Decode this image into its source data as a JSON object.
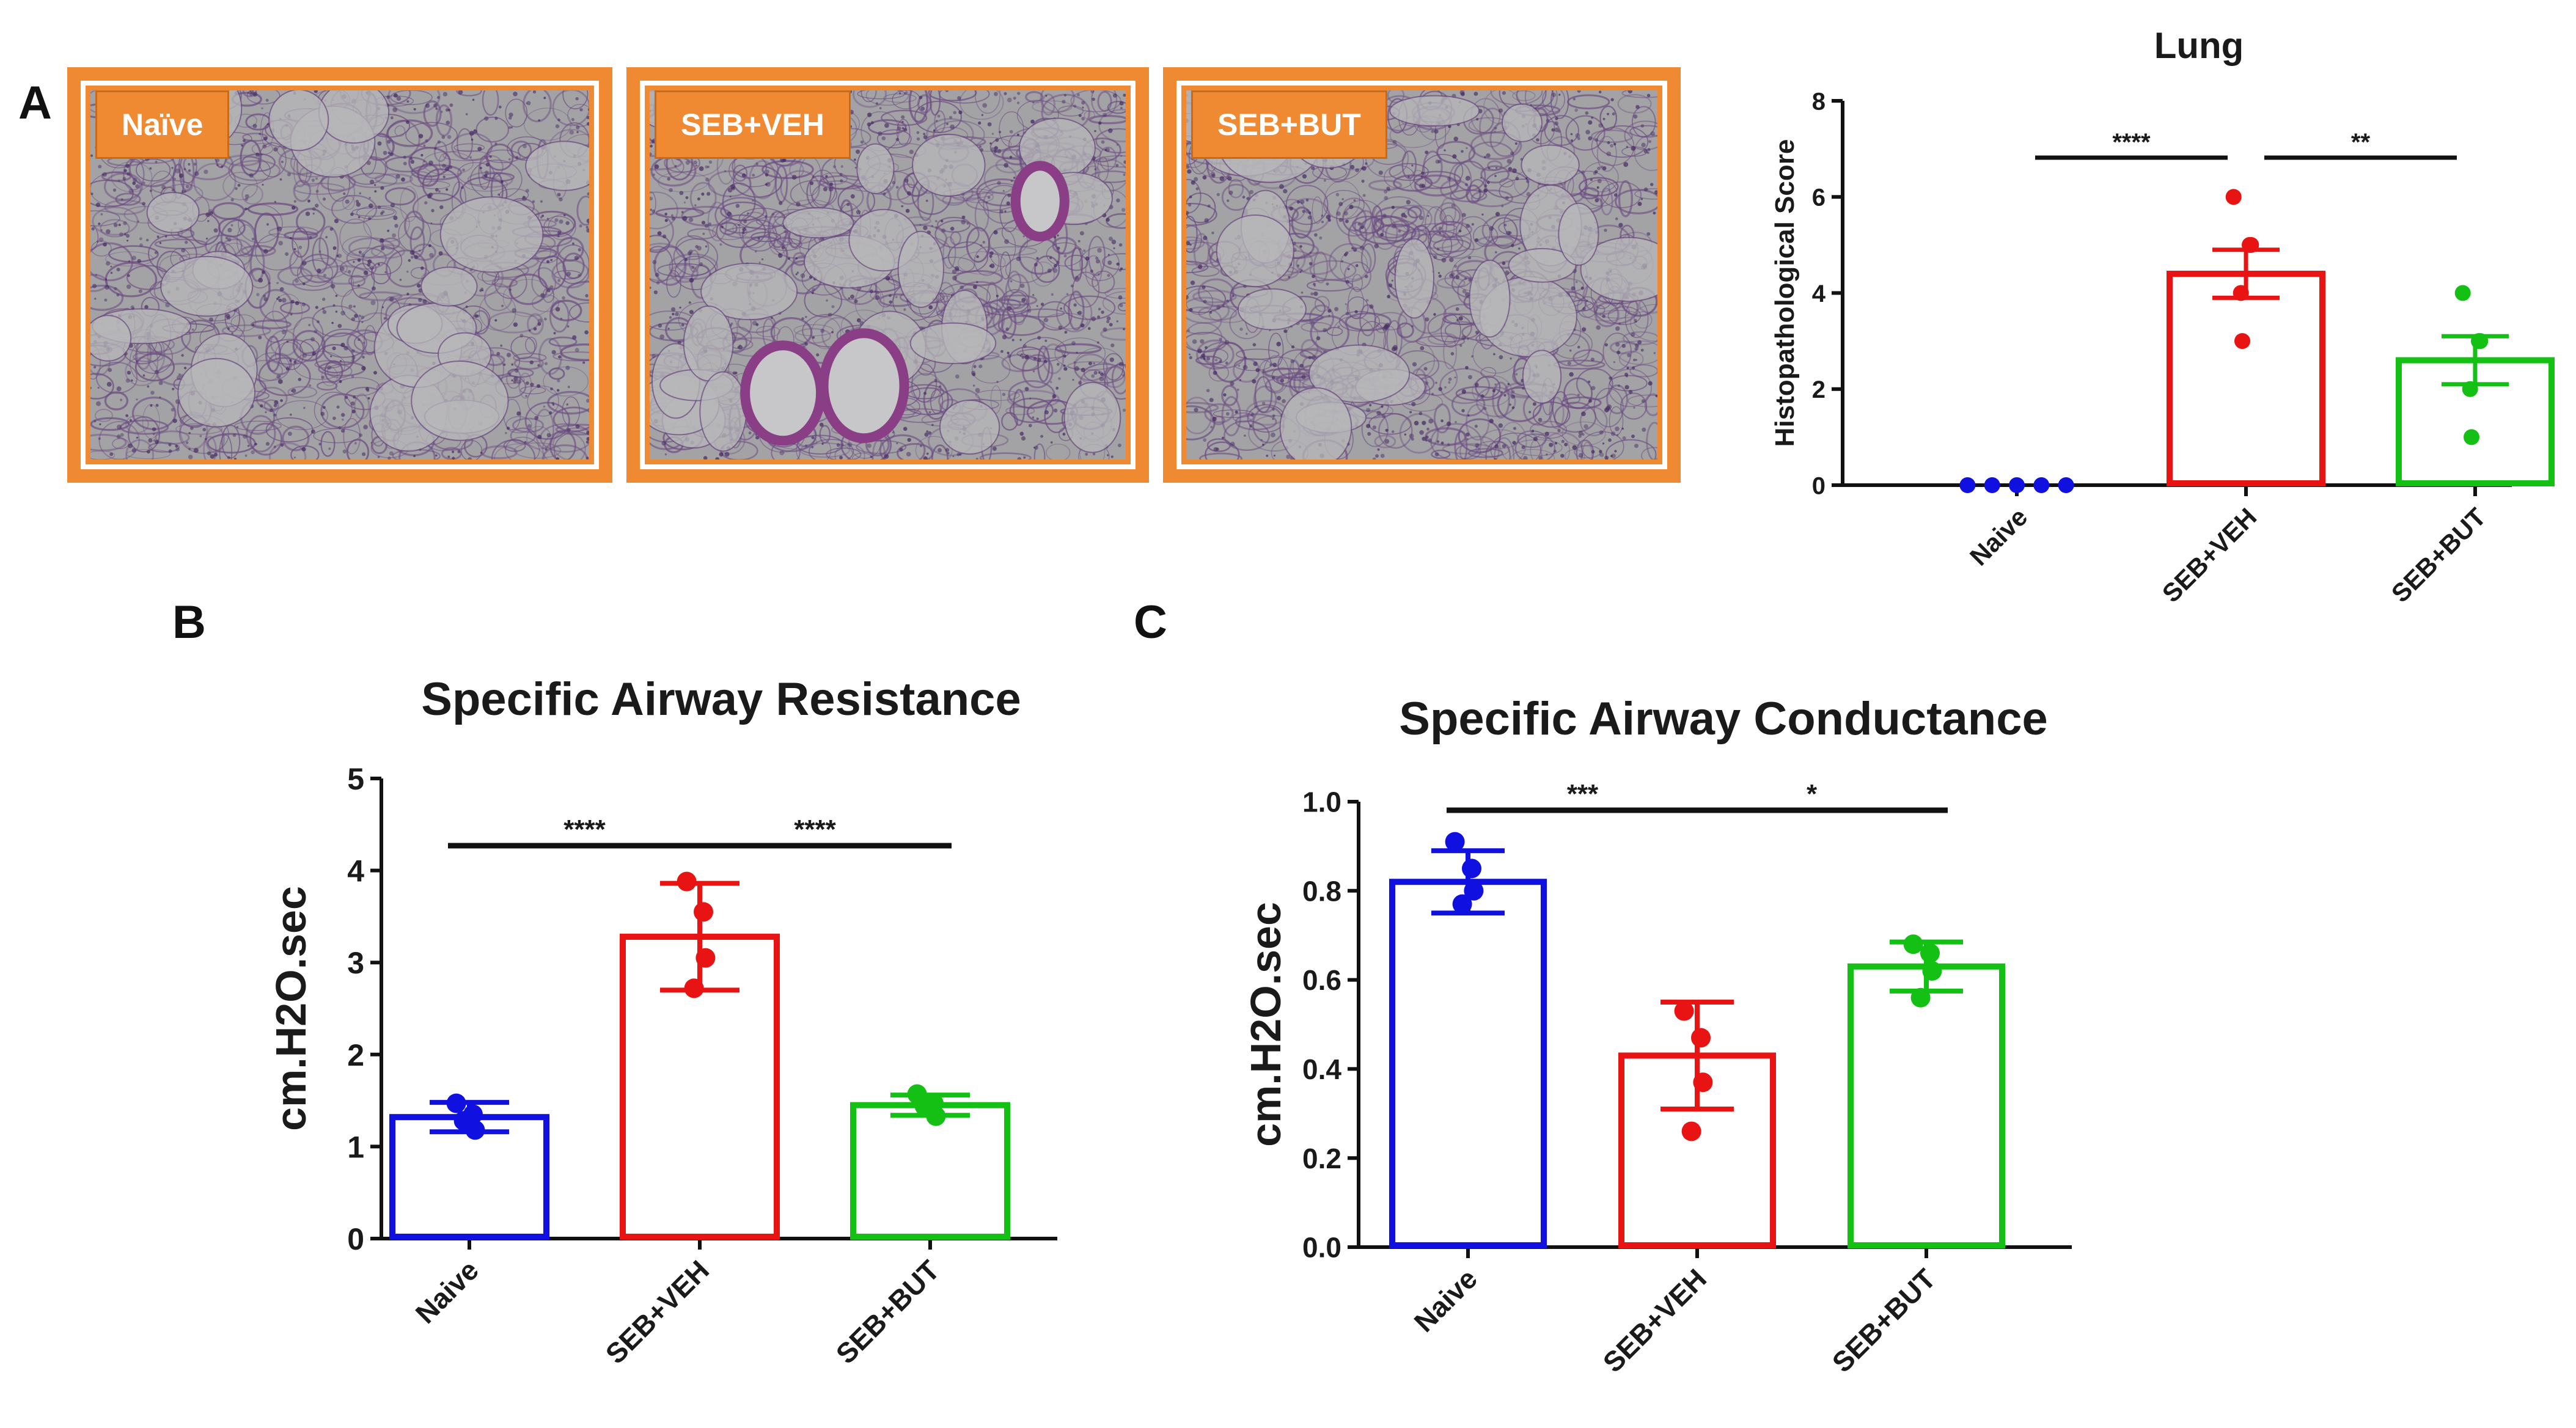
{
  "panels": {
    "a": "A",
    "b": "B",
    "c": "C"
  },
  "micrographs": [
    {
      "label": "Naïve"
    },
    {
      "label": "SEB+VEH"
    },
    {
      "label": "SEB+BUT"
    }
  ],
  "colors": {
    "naive": "#1010e0",
    "veh": "#e81414",
    "but": "#14c014",
    "frame": "#ef8a33",
    "tissue_bg": "#a3a3a5",
    "tissue_stain": "#6c4c82"
  },
  "chart_data": [
    {
      "id": "lung",
      "type": "bar",
      "title": "Lung",
      "xlabel": "",
      "ylabel": "Histopathological Score",
      "ylim": [
        0,
        8
      ],
      "yticks": [
        0,
        2,
        4,
        6,
        8
      ],
      "ytick_labels": [
        "0",
        "2",
        "4",
        "6",
        "8"
      ],
      "categories": [
        "Naive",
        "SEB+VEH",
        "SEB+BUT"
      ],
      "values": [
        0,
        4.4,
        2.6
      ],
      "errors": [
        0,
        0.5,
        0.5
      ],
      "points": [
        [
          0,
          0,
          0,
          0,
          0
        ],
        [
          6,
          5,
          5,
          4,
          3
        ],
        [
          4,
          3,
          3,
          2,
          1
        ]
      ],
      "significance": [
        {
          "from": 0,
          "to": 1,
          "label": "****"
        },
        {
          "from": 1,
          "to": 2,
          "label": "**"
        }
      ]
    },
    {
      "id": "resistance",
      "type": "bar",
      "title": "Specific Airway Resistance",
      "xlabel": "",
      "ylabel": "cm.H2O.sec",
      "ylim": [
        0,
        5
      ],
      "yticks": [
        0,
        1,
        2,
        3,
        4,
        5
      ],
      "ytick_labels": [
        "0",
        "1",
        "2",
        "3",
        "4",
        "5"
      ],
      "categories": [
        "Naive",
        "SEB+VEH",
        "SEB+BUT"
      ],
      "values": [
        1.32,
        3.28,
        1.45
      ],
      "errors": [
        0.16,
        0.58,
        0.11
      ],
      "points": [
        [
          1.47,
          1.35,
          1.18,
          1.28
        ],
        [
          3.88,
          3.55,
          3.05,
          2.72
        ],
        [
          1.57,
          1.47,
          1.33,
          1.44
        ]
      ],
      "significance": [
        {
          "from": 0,
          "to": 1,
          "label": "****"
        },
        {
          "from": 1,
          "to": 2,
          "label": "****"
        }
      ]
    },
    {
      "id": "conductance",
      "type": "bar",
      "title": "Specific Airway Conductance",
      "xlabel": "",
      "ylabel": "cm.H2O.sec",
      "ylim": [
        0,
        1.0
      ],
      "yticks": [
        0,
        0.2,
        0.4,
        0.6,
        0.8,
        1.0
      ],
      "ytick_labels": [
        "0.0",
        "0.2",
        "0.4",
        "0.6",
        "0.8",
        "1.0"
      ],
      "categories": [
        "Naive",
        "SEB+VEH",
        "SEB+BUT"
      ],
      "values": [
        0.82,
        0.43,
        0.63
      ],
      "errors": [
        0.07,
        0.12,
        0.055
      ],
      "points": [
        [
          0.91,
          0.85,
          0.8,
          0.77
        ],
        [
          0.53,
          0.47,
          0.37,
          0.26
        ],
        [
          0.68,
          0.66,
          0.62,
          0.56
        ]
      ],
      "significance": [
        {
          "from": 0,
          "to": 1,
          "label": "***"
        },
        {
          "from": 1,
          "to": 2,
          "label": "*"
        }
      ]
    }
  ]
}
